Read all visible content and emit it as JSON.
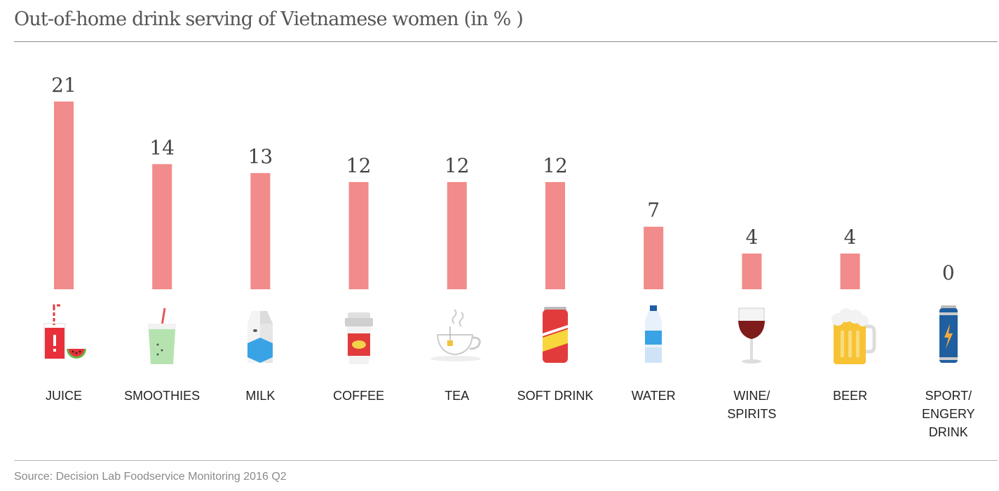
{
  "title": "Out-of-home drink serving of Vietnamese women (in % )",
  "source": "Source: Decision Lab Foodservice Monitoring 2016 Q2",
  "colors": {
    "bar": "#f28b8b"
  },
  "chart_data": {
    "type": "bar",
    "title": "Out-of-home drink serving of Vietnamese women (in % )",
    "categories": [
      "JUICE",
      "SMOOTHIES",
      "MILK",
      "COFFEE",
      "TEA",
      "SOFT DRINK",
      "WATER",
      "WINE/ SPIRITS",
      "BEER",
      "SPORT/ ENGERY DRINK"
    ],
    "category_lines": [
      [
        "JUICE"
      ],
      [
        "SMOOTHIES"
      ],
      [
        "MILK"
      ],
      [
        "COFFEE"
      ],
      [
        "TEA"
      ],
      [
        "SOFT DRINK"
      ],
      [
        "WATER"
      ],
      [
        "WINE/",
        "SPIRITS"
      ],
      [
        "BEER"
      ],
      [
        "SPORT/",
        "ENGERY",
        "DRINK"
      ]
    ],
    "icons": [
      "juice-icon",
      "smoothie-icon",
      "milk-carton-icon",
      "coffee-cup-icon",
      "tea-cup-icon",
      "soda-can-icon",
      "water-bottle-icon",
      "wine-glass-icon",
      "beer-mug-icon",
      "energy-drink-can-icon"
    ],
    "values": [
      21,
      14,
      13,
      12,
      12,
      12,
      7,
      4,
      4,
      0
    ],
    "unit": "%",
    "ylim": [
      0,
      21
    ],
    "grid": false,
    "legend": "none"
  }
}
